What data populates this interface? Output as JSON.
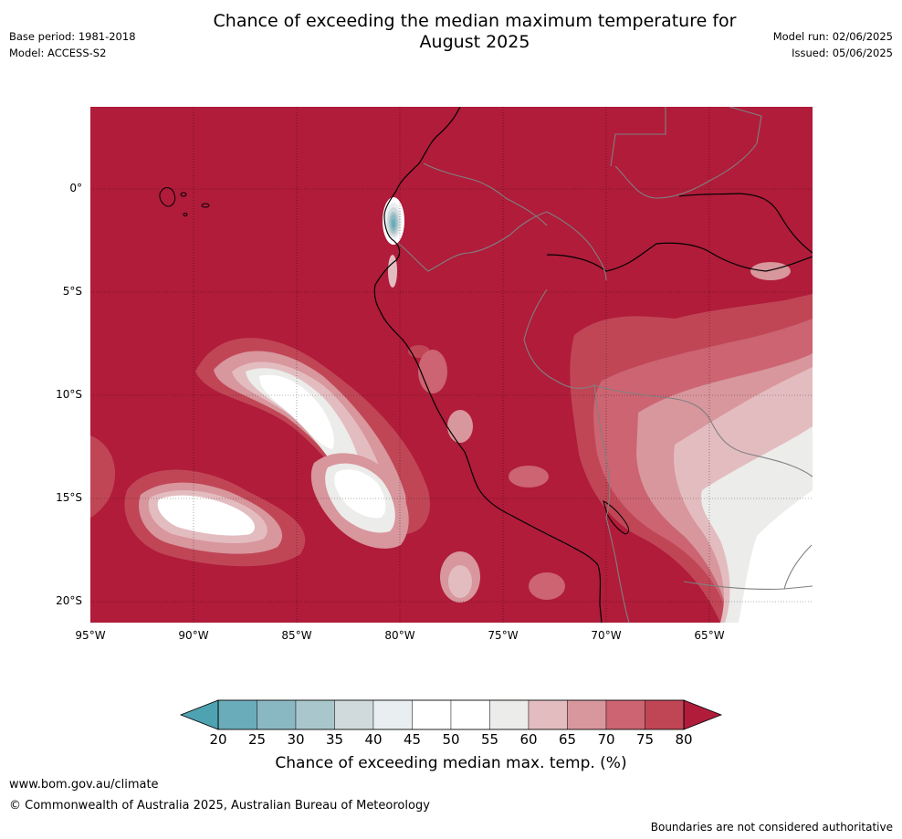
{
  "header": {
    "title_line1": "Chance of exceeding the median maximum temperature for",
    "title_line2": "August 2025",
    "base_period": "Base period: 1981-2018",
    "model": "Model: ACCESS-S2",
    "model_run": "Model run: 02/06/2025",
    "issued": "Issued: 05/06/2025"
  },
  "map": {
    "lat_labels": [
      "0°",
      "5°S",
      "10°S",
      "15°S",
      "20°S"
    ],
    "lon_labels": [
      "95°W",
      "90°W",
      "85°W",
      "80°W",
      "75°W",
      "70°W",
      "65°W"
    ],
    "colors": {
      "above_80": "#b01c3a",
      "c75_80": "#c04656",
      "c70_75": "#cc6472",
      "c65_70": "#d8969d",
      "c60_65": "#e3bcc0",
      "c55_60": "#ececea",
      "c50_55": "#ffffff",
      "c40_45": "#e9eef1",
      "c35_40": "#d0d9dc",
      "c30_35": "#a9c6cc",
      "c25_30": "#8ab8c2",
      "c20_25": "#6aacb9",
      "below_20": "#4ea2b1",
      "coastline": "#000000",
      "border": "#808080"
    }
  },
  "colorbar": {
    "ticks": [
      "20",
      "25",
      "30",
      "35",
      "40",
      "45",
      "50",
      "55",
      "60",
      "65",
      "70",
      "75",
      "80"
    ],
    "segment_colors": [
      "#6aacb9",
      "#8ab8c2",
      "#a9c6cc",
      "#d0d9dc",
      "#e9eef1",
      "#ffffff",
      "#ffffff",
      "#ececea",
      "#e3bcc0",
      "#d8969d",
      "#cc6472",
      "#c04656"
    ],
    "low_extend_color": "#4ea2b1",
    "high_extend_color": "#b01c3a",
    "label": "Chance of exceeding median max. temp. (%)"
  },
  "footer": {
    "url": "www.bom.gov.au/climate",
    "copyright": "© Commonwealth of Australia 2025, Australian Bureau of Meteorology",
    "disclaimer": "Boundaries are not considered authoritative"
  }
}
